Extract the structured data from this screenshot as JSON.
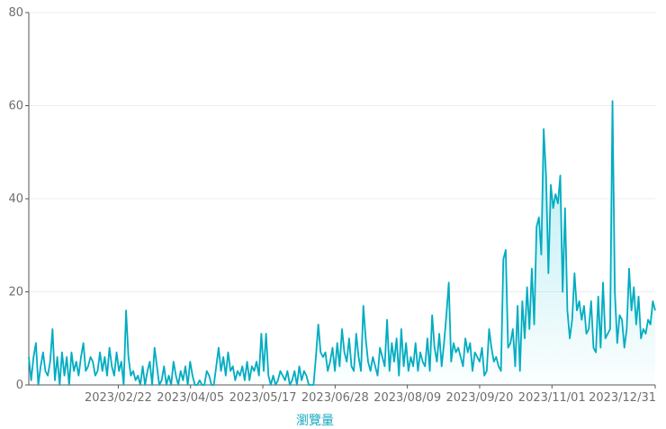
{
  "chart_data": {
    "type": "area",
    "xlabel": "瀏覽量",
    "ylabel": "",
    "x_start": "2023/01/01",
    "x_end": "2023/12/31",
    "xtick_labels": [
      "2023/02/22",
      "2023/04/05",
      "2023/05/17",
      "2023/06/28",
      "2023/08/09",
      "2023/09/20",
      "2023/11/01",
      "2023/12/31"
    ],
    "ylim": [
      0,
      80
    ],
    "ytick_labels": [
      "0",
      "20",
      "40",
      "60",
      "80"
    ],
    "grid": true,
    "legend": "none",
    "colors": {
      "line": "#00acc1",
      "fill": "#4dd0e1",
      "grid": "#ececec",
      "axis": "#555555",
      "xlabel": "#17a9c3"
    },
    "series": [
      {
        "values": [
          6,
          1,
          6,
          9,
          0,
          4,
          7,
          3,
          2,
          5,
          12,
          1,
          6,
          0,
          7,
          2,
          6,
          0,
          7,
          3,
          5,
          2,
          6,
          9,
          3,
          4,
          6,
          5,
          2,
          3,
          7,
          3,
          6,
          2,
          8,
          4,
          2,
          7,
          3,
          5,
          0,
          16,
          6,
          2,
          3,
          1,
          2,
          0,
          4,
          0,
          3,
          5,
          0,
          8,
          4,
          0,
          1,
          4,
          0,
          2,
          0,
          5,
          2,
          0,
          3,
          1,
          4,
          0,
          5,
          2,
          0,
          0,
          1,
          0,
          0,
          3,
          2,
          0,
          0,
          4,
          8,
          3,
          6,
          2,
          7,
          3,
          4,
          1,
          3,
          2,
          4,
          1,
          5,
          1,
          4,
          3,
          5,
          2,
          11,
          3,
          11,
          2,
          0,
          2,
          0,
          1,
          3,
          2,
          1,
          3,
          0,
          1,
          3,
          0,
          4,
          1,
          3,
          2,
          0,
          0,
          0,
          6,
          13,
          7,
          6,
          7,
          3,
          5,
          8,
          3,
          9,
          4,
          12,
          7,
          5,
          10,
          4,
          3,
          11,
          6,
          3,
          17,
          10,
          5,
          3,
          6,
          4,
          2,
          8,
          6,
          4,
          14,
          3,
          9,
          5,
          10,
          2,
          12,
          4,
          9,
          3,
          6,
          4,
          9,
          3,
          7,
          5,
          4,
          10,
          3,
          15,
          8,
          5,
          11,
          4,
          9,
          15,
          22,
          5,
          9,
          7,
          8,
          6,
          4,
          10,
          7,
          9,
          3,
          7,
          6,
          5,
          8,
          2,
          3,
          12,
          8,
          5,
          6,
          4,
          3,
          27,
          29,
          8,
          9,
          12,
          4,
          17,
          3,
          18,
          10,
          21,
          12,
          25,
          13,
          34,
          36,
          28,
          55,
          45,
          24,
          43,
          38,
          41,
          39,
          45,
          20,
          38,
          16,
          10,
          14,
          24,
          16,
          18,
          14,
          17,
          11,
          12,
          18,
          8,
          7,
          19,
          8,
          22,
          10,
          11,
          12,
          61,
          20,
          9,
          15,
          14,
          8,
          12,
          25,
          16,
          21,
          13,
          19,
          10,
          12,
          11,
          14,
          13,
          18,
          16
        ],
        "extra_note": ""
      }
    ]
  }
}
